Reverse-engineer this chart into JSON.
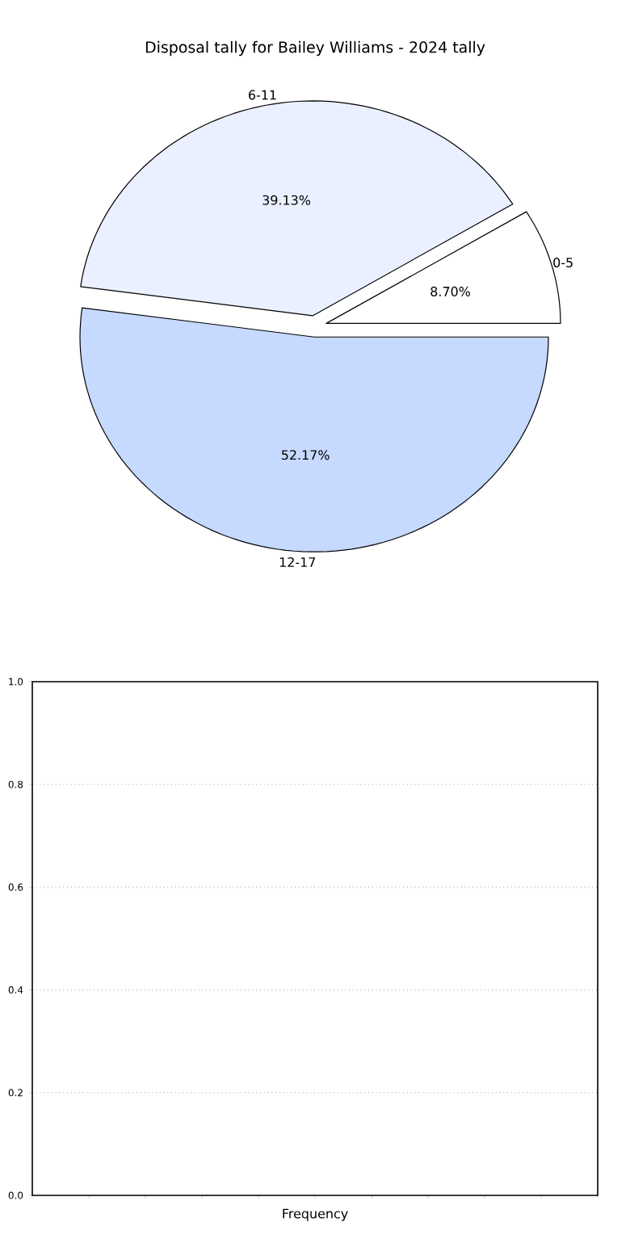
{
  "chart_data": [
    {
      "type": "pie",
      "title": "Disposal tally for Bailey Williams - 2024 tally",
      "categories": [
        "0-5",
        "6-11",
        "12-17"
      ],
      "values": [
        8.7,
        39.13,
        52.17
      ],
      "colors": [
        "#ffffff",
        "#eaf0ff",
        "#c6d9ff"
      ],
      "value_labels": [
        "8.70%",
        "39.13%",
        "52.17%"
      ],
      "legend": false
    },
    {
      "type": "bar",
      "xlabel": "Frequency",
      "categories": [
        null
      ],
      "values": [
        null
      ],
      "ylim": [
        0,
        1
      ],
      "yticks": [
        {
          "value": 0,
          "label": "0.0"
        },
        {
          "value": 0.2,
          "label": "0.2"
        },
        {
          "value": 0.4,
          "label": "0.4"
        },
        {
          "value": 0.6,
          "label": "0.6"
        },
        {
          "value": 0.8,
          "label": "0.8"
        },
        {
          "value": 1,
          "label": "1.0"
        }
      ],
      "grid": "y",
      "legend": false
    }
  ]
}
